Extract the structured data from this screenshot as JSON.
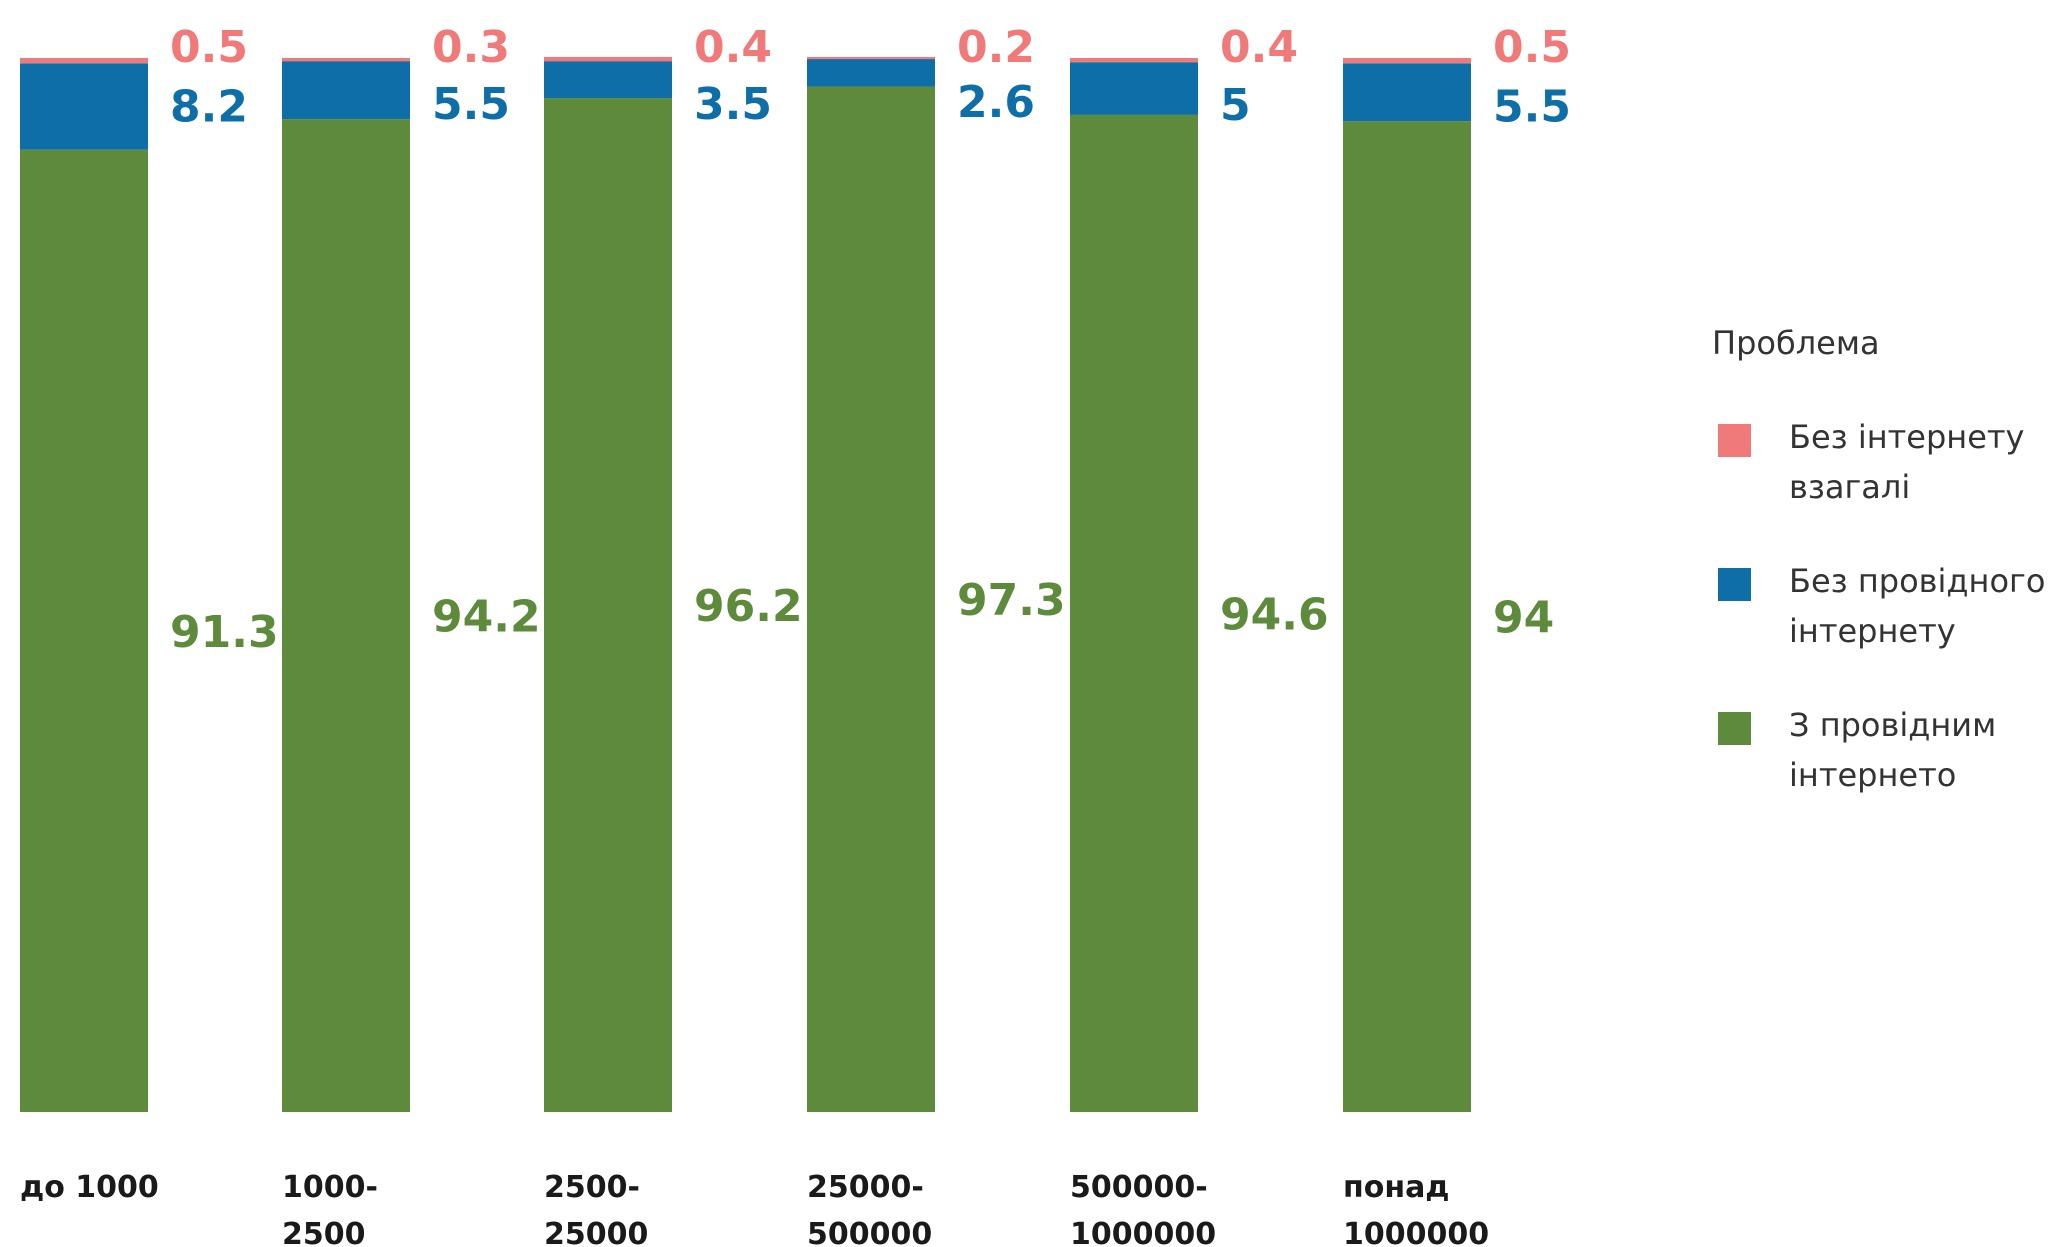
{
  "chart_data": {
    "type": "bar",
    "stacked": true,
    "normalized": true,
    "categories": [
      "до 1000",
      "1000-2500",
      "2500-25000",
      "25000-500000",
      "500000-1000000",
      "понад 1000000"
    ],
    "category_lines": [
      [
        "до 1000"
      ],
      [
        "1000-",
        "2500"
      ],
      [
        "2500-",
        "25000"
      ],
      [
        "25000-",
        "500000"
      ],
      [
        "500000-",
        "1000000"
      ],
      [
        "понад",
        "1000000"
      ]
    ],
    "series": [
      {
        "name": "З провідним інтернето",
        "color": "#5e8a3c",
        "values": [
          91.3,
          94.2,
          96.2,
          97.3,
          94.6,
          94
        ],
        "labels": [
          "91.3",
          "94.2",
          "96.2",
          "97.3",
          "94.6",
          "94"
        ]
      },
      {
        "name": "Без провідного інтернету",
        "color": "#0e6fa8",
        "values": [
          8.2,
          5.5,
          3.5,
          2.6,
          5,
          5.5
        ],
        "labels": [
          "8.2",
          "5.5",
          "3.5",
          "2.6",
          "5",
          "5.5"
        ]
      },
      {
        "name": "Без інтернету взагалі",
        "color": "#f07a7a",
        "values": [
          0.5,
          0.3,
          0.4,
          0.2,
          0.4,
          0.5
        ],
        "labels": [
          "0.5",
          "0.3",
          "0.4",
          "0.2",
          "0.4",
          "0.5"
        ]
      }
    ],
    "ylim": [
      0,
      100
    ],
    "grid": false,
    "legend": {
      "title": "Проблема",
      "placement": "right",
      "items": [
        {
          "lines": [
            "Без інтернету",
            "взагалі"
          ],
          "color": "#f07a7a"
        },
        {
          "lines": [
            "Без провідного",
            "інтернету"
          ],
          "color": "#0e6fa8"
        },
        {
          "lines": [
            "З провідним",
            "інтернето"
          ],
          "color": "#5e8a3c"
        }
      ]
    }
  }
}
